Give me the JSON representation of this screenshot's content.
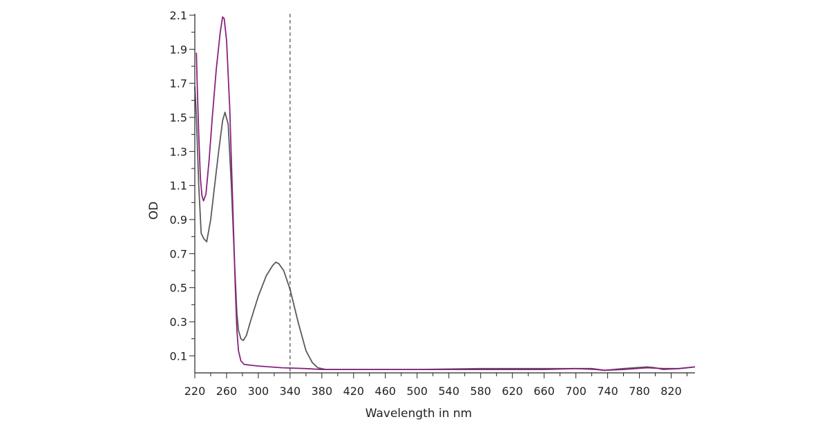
{
  "chart_data": {
    "type": "line",
    "title": "",
    "xlabel": "Wavelength in nm",
    "ylabel": "OD",
    "xlim": [
      220,
      850
    ],
    "ylim": [
      0.0,
      2.1
    ],
    "x_ticks": [
      220,
      260,
      300,
      340,
      380,
      420,
      460,
      500,
      540,
      580,
      620,
      660,
      700,
      740,
      780,
      820
    ],
    "y_ticks": [
      0.1,
      0.3,
      0.5,
      0.7,
      0.9,
      1.1,
      1.3,
      1.5,
      1.7,
      1.9,
      2.1
    ],
    "grid": false,
    "reference_line": {
      "x": 340,
      "style": "dashed"
    },
    "series": [
      {
        "color": "#595959",
        "points": [
          [
            220,
            1.68
          ],
          [
            222,
            1.5
          ],
          [
            225,
            1.1
          ],
          [
            228,
            0.82
          ],
          [
            231,
            0.79
          ],
          [
            235,
            0.77
          ],
          [
            240,
            0.9
          ],
          [
            245,
            1.1
          ],
          [
            250,
            1.3
          ],
          [
            255,
            1.48
          ],
          [
            258,
            1.53
          ],
          [
            262,
            1.46
          ],
          [
            266,
            1.1
          ],
          [
            270,
            0.65
          ],
          [
            273,
            0.35
          ],
          [
            275,
            0.25
          ],
          [
            278,
            0.2
          ],
          [
            281,
            0.19
          ],
          [
            285,
            0.22
          ],
          [
            290,
            0.3
          ],
          [
            300,
            0.45
          ],
          [
            310,
            0.57
          ],
          [
            318,
            0.63
          ],
          [
            322,
            0.65
          ],
          [
            326,
            0.64
          ],
          [
            332,
            0.6
          ],
          [
            340,
            0.49
          ],
          [
            350,
            0.3
          ],
          [
            360,
            0.13
          ],
          [
            368,
            0.06
          ],
          [
            375,
            0.03
          ],
          [
            385,
            0.02
          ],
          [
            420,
            0.02
          ],
          [
            500,
            0.02
          ],
          [
            580,
            0.025
          ],
          [
            660,
            0.025
          ],
          [
            700,
            0.025
          ],
          [
            725,
            0.02
          ],
          [
            736,
            0.015
          ],
          [
            760,
            0.025
          ],
          [
            790,
            0.035
          ],
          [
            800,
            0.03
          ],
          [
            810,
            0.02
          ],
          [
            830,
            0.025
          ],
          [
            850,
            0.035
          ]
        ]
      },
      {
        "color": "#8b1f7f",
        "points": [
          [
            222,
            1.88
          ],
          [
            223,
            1.7
          ],
          [
            225,
            1.4
          ],
          [
            227,
            1.15
          ],
          [
            229,
            1.04
          ],
          [
            231,
            1.01
          ],
          [
            234,
            1.05
          ],
          [
            238,
            1.25
          ],
          [
            242,
            1.5
          ],
          [
            247,
            1.78
          ],
          [
            252,
            2.0
          ],
          [
            255,
            2.09
          ],
          [
            257,
            2.08
          ],
          [
            260,
            1.95
          ],
          [
            264,
            1.55
          ],
          [
            268,
            0.95
          ],
          [
            271,
            0.5
          ],
          [
            273,
            0.25
          ],
          [
            275,
            0.13
          ],
          [
            278,
            0.07
          ],
          [
            282,
            0.05
          ],
          [
            290,
            0.045
          ],
          [
            300,
            0.04
          ],
          [
            330,
            0.03
          ],
          [
            360,
            0.025
          ],
          [
            380,
            0.02
          ],
          [
            420,
            0.02
          ],
          [
            500,
            0.02
          ],
          [
            580,
            0.02
          ],
          [
            660,
            0.02
          ],
          [
            700,
            0.025
          ],
          [
            720,
            0.025
          ],
          [
            736,
            0.015
          ],
          [
            760,
            0.02
          ],
          [
            790,
            0.03
          ],
          [
            810,
            0.025
          ],
          [
            830,
            0.025
          ],
          [
            850,
            0.035
          ]
        ]
      }
    ]
  }
}
